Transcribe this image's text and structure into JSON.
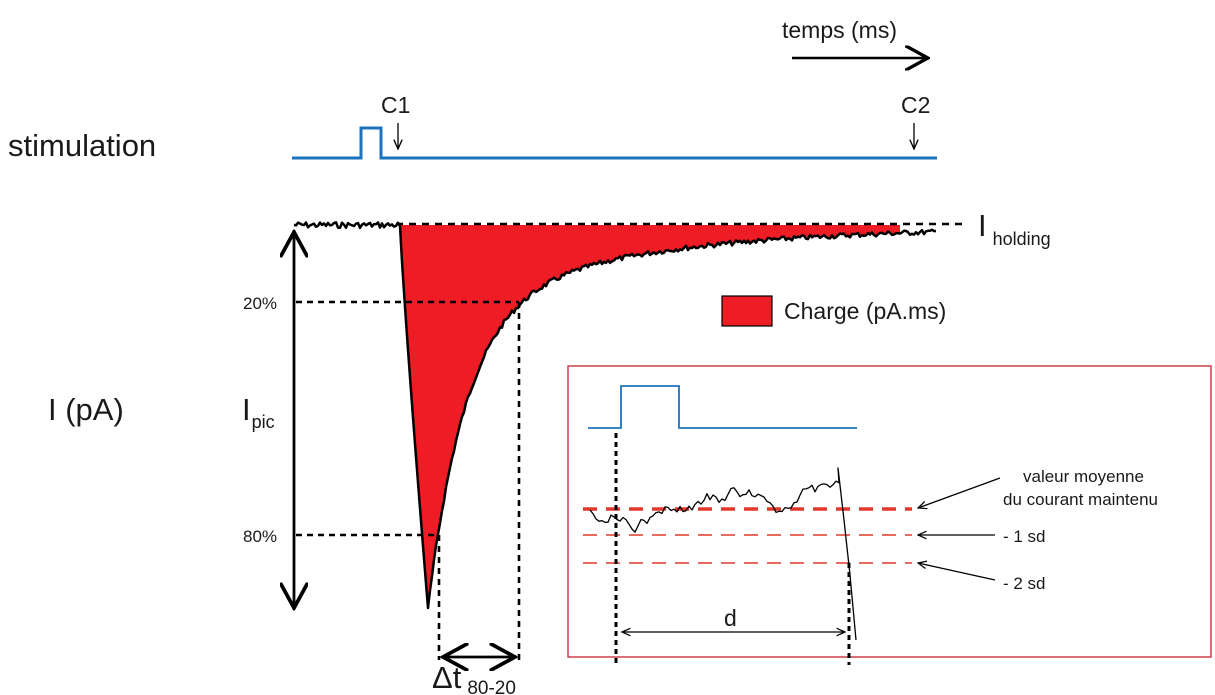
{
  "labels": {
    "time_axis": "temps (ms)",
    "stimulation": "stimulation",
    "c1": "C1",
    "c2": "C2",
    "current_axis": "I (pA)",
    "i_holding_main": "I",
    "i_holding_sub": "holding",
    "i_pic_main": "I",
    "i_pic_sub": "pic",
    "pct_20": "20%",
    "pct_80": "80%",
    "delta_t_main": "Δt",
    "delta_t_sub": "80-20",
    "charge_legend": "Charge (pA.ms)"
  },
  "inset": {
    "mean_label_line1": "valeur moyenne",
    "mean_label_line2": "du courant maintenu",
    "sd1_label": "- 1 sd",
    "sd2_label": "- 2 sd",
    "d_label": "d"
  },
  "colors": {
    "stim_trace": "#1e73be",
    "charge_fill": "#ee1c25",
    "trace": "#000000",
    "inset_border": "#c8323c",
    "mean_line": "#e0392b",
    "sd_lines": "#e0392b"
  }
}
